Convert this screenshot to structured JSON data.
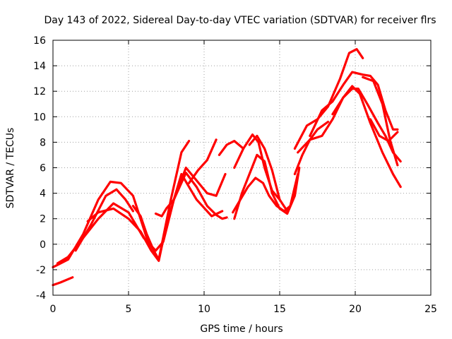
{
  "chart_data": {
    "type": "scatter",
    "title": "Day 143 of 2022, Sidereal Day-to-day VTEC variation (SDTVAR) for receiver flrs",
    "xlabel": "GPS time / hours",
    "ylabel": "SDTVAR / TECUs",
    "xlim": [
      0,
      25
    ],
    "ylim": [
      -4,
      16
    ],
    "xticks": [
      0,
      5,
      10,
      15,
      20,
      25
    ],
    "yticks": [
      -4,
      -2,
      0,
      2,
      4,
      6,
      8,
      10,
      12,
      14,
      16
    ],
    "grid": true,
    "marker_color": "#ff0000",
    "series": [
      {
        "name": "trace-1",
        "x": [
          0.0,
          0.5,
          1.0,
          2.0,
          3.0,
          3.8,
          4.5,
          5.3,
          6.2,
          7.0,
          7.8,
          8.5,
          9.0
        ],
        "y": [
          -1.8,
          -1.5,
          -1.2,
          0.8,
          3.5,
          4.9,
          4.8,
          3.8,
          0.5,
          -1.2,
          3.5,
          7.2,
          8.1
        ]
      },
      {
        "name": "trace-2",
        "x": [
          0.3,
          1.0,
          2.0,
          3.0,
          4.0,
          5.0,
          6.0,
          6.8,
          7.3,
          8.0,
          8.8,
          9.5,
          10.2,
          10.8,
          11.2,
          11.5
        ],
        "y": [
          -1.5,
          -1.0,
          0.5,
          2.0,
          3.2,
          2.5,
          0.5,
          -0.5,
          0.2,
          3.5,
          5.6,
          4.5,
          3.0,
          2.3,
          2.0,
          2.1
        ]
      },
      {
        "name": "trace-3",
        "x": [
          0.0,
          0.5,
          1.3
        ],
        "y": [
          -3.2,
          -3.0,
          -2.6
        ]
      },
      {
        "name": "trace-4",
        "x": [
          2.3,
          3.0,
          4.0,
          5.0,
          5.8,
          6.5,
          7.0,
          7.5,
          8.5,
          9.5,
          10.5,
          11.2
        ],
        "y": [
          1.8,
          2.5,
          2.8,
          2.0,
          1.0,
          -0.5,
          -1.3,
          1.5,
          5.5,
          3.5,
          2.2,
          2.6
        ]
      },
      {
        "name": "trace-5",
        "x": [
          6.8,
          7.2,
          7.5,
          8.0,
          8.8,
          9.5,
          10.2,
          10.8,
          11.4
        ],
        "y": [
          2.4,
          2.2,
          2.8,
          3.5,
          6.0,
          5.0,
          4.0,
          3.8,
          5.5
        ]
      },
      {
        "name": "trace-6",
        "x": [
          9.0,
          9.6,
          10.2,
          10.8
        ],
        "y": [
          4.8,
          5.8,
          6.6,
          8.2
        ]
      },
      {
        "name": "trace-7",
        "x": [
          12.0,
          12.5,
          13.0,
          13.5,
          14.0,
          14.5,
          15.0,
          15.5,
          16.0,
          16.3
        ],
        "y": [
          2.0,
          4.0,
          5.5,
          7.0,
          6.5,
          4.0,
          2.8,
          2.4,
          3.8,
          6.0
        ]
      },
      {
        "name": "trace-8",
        "x": [
          11.9,
          12.4,
          12.9,
          13.4,
          13.9,
          14.3,
          14.8,
          15.3,
          15.7,
          16.2
        ],
        "y": [
          2.5,
          3.5,
          4.5,
          5.2,
          4.8,
          3.8,
          3.0,
          2.6,
          3.0,
          5.5
        ]
      },
      {
        "name": "trace-9",
        "x": [
          12.0,
          12.6,
          13.2,
          13.6,
          14.0,
          14.5,
          15.0
        ],
        "y": [
          6.0,
          7.5,
          8.6,
          8.0,
          6.0,
          4.2,
          3.5
        ]
      },
      {
        "name": "trace-10",
        "x": [
          11.0,
          11.5,
          12.0,
          12.6
        ],
        "y": [
          7.0,
          7.8,
          8.1,
          7.5
        ]
      },
      {
        "name": "trace-11",
        "x": [
          16.0,
          16.8,
          17.5,
          18.2,
          19.0,
          19.6,
          20.1,
          20.5
        ],
        "y": [
          7.5,
          9.3,
          9.8,
          10.8,
          13.0,
          15.0,
          15.3,
          14.6
        ]
      },
      {
        "name": "trace-12",
        "x": [
          16.2,
          17.0,
          17.8,
          18.5,
          19.2,
          19.8,
          20.3,
          21.0,
          21.8,
          22.5,
          23.0
        ],
        "y": [
          7.2,
          8.2,
          8.5,
          9.8,
          11.5,
          12.4,
          11.8,
          9.5,
          7.2,
          5.5,
          4.5
        ]
      },
      {
        "name": "trace-13",
        "x": [
          17.0,
          17.8,
          18.5,
          19.2,
          19.8,
          20.5,
          21.0,
          21.5,
          22.0,
          22.5,
          22.8
        ],
        "y": [
          8.5,
          10.5,
          11.2,
          12.5,
          13.5,
          13.3,
          13.2,
          12.5,
          10.5,
          9.0,
          9.0
        ]
      },
      {
        "name": "trace-14",
        "x": [
          18.5,
          19.2,
          19.8,
          20.2,
          20.8,
          21.5,
          22.0,
          22.5,
          23.0
        ],
        "y": [
          10.2,
          11.5,
          12.2,
          12.2,
          11.0,
          9.5,
          8.5,
          7.2,
          6.5
        ]
      },
      {
        "name": "trace-15",
        "x": [
          20.5,
          21.2,
          21.8,
          22.3,
          22.8
        ],
        "y": [
          13.1,
          12.8,
          11.0,
          8.2,
          6.2
        ]
      },
      {
        "name": "trace-16",
        "x": [
          21.0,
          21.6,
          22.2,
          22.8
        ],
        "y": [
          9.8,
          8.5,
          8.1,
          8.8
        ]
      },
      {
        "name": "trace-17",
        "x": [
          5.3,
          5.8,
          6.2,
          6.6
        ],
        "y": [
          3.0,
          2.2,
          0.8,
          -0.3
        ]
      },
      {
        "name": "trace-18",
        "x": [
          1.5,
          2.5,
          3.5,
          4.2,
          4.8,
          5.3
        ],
        "y": [
          -0.5,
          1.5,
          3.8,
          4.3,
          3.5,
          2.6
        ]
      },
      {
        "name": "trace-19",
        "x": [
          13.0,
          13.5,
          14.0,
          14.5,
          15.0,
          15.5
        ],
        "y": [
          7.8,
          8.5,
          7.5,
          5.8,
          3.5,
          2.6
        ]
      },
      {
        "name": "trace-20",
        "x": [
          16.0,
          16.5,
          17.0,
          17.5,
          18.2
        ],
        "y": [
          5.5,
          7.0,
          8.2,
          9.0,
          9.6
        ]
      }
    ]
  }
}
